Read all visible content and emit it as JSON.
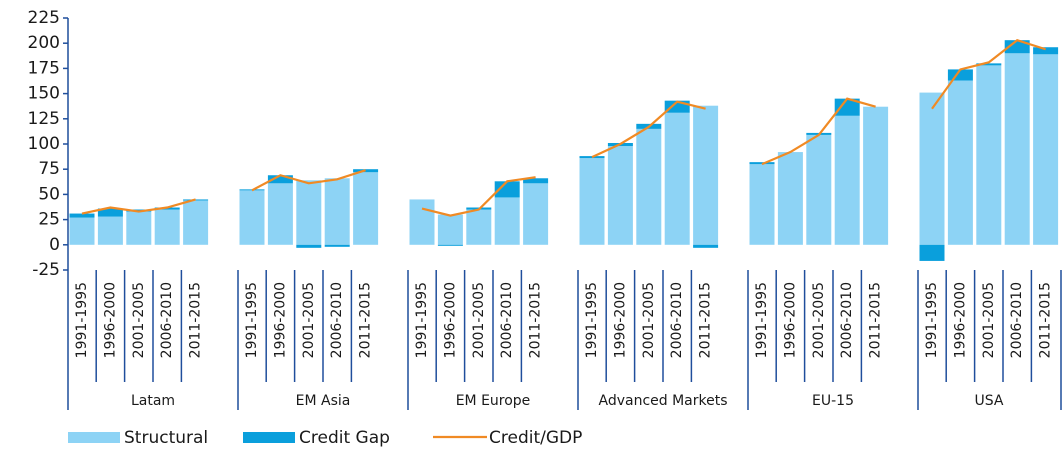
{
  "chart_data": {
    "type": "stacked-bar-line",
    "groups": [
      {
        "name": "Latam",
        "categories": [
          "1991-1995",
          "1996-2000",
          "2001-2005",
          "2006-2010",
          "2011-2015"
        ]
      },
      {
        "name": "EM Asia",
        "categories": [
          "1991-1995",
          "1996-2000",
          "2001-2005",
          "2006-2010",
          "2011-2015"
        ]
      },
      {
        "name": "EM Europe",
        "categories": [
          "1991-1995",
          "1996-2000",
          "2001-2005",
          "2006-2010",
          "2011-2015"
        ]
      },
      {
        "name": "Advanced Markets",
        "categories": [
          "1991-1995",
          "1996-2000",
          "2001-2005",
          "2006-2010",
          "2011-2015"
        ]
      },
      {
        "name": "EU-15",
        "categories": [
          "1991-1995",
          "1996-2000",
          "2001-2005",
          "2006-2010",
          "2011-2015"
        ]
      },
      {
        "name": "USA",
        "categories": [
          "1991-1995",
          "1996-2000",
          "2001-2005",
          "2006-2010",
          "2011-2015"
        ]
      }
    ],
    "series": [
      {
        "name": "Structural",
        "kind": "bar",
        "color": "#8dd3f5",
        "values": [
          27,
          28,
          33,
          35,
          44,
          54,
          61,
          64,
          66,
          72,
          45,
          30,
          35,
          47,
          61,
          86,
          98,
          115,
          131,
          138,
          80,
          92,
          109,
          128,
          137,
          151,
          163,
          178,
          190,
          189
        ]
      },
      {
        "name": "Credit Gap",
        "kind": "bar",
        "color": "#0a9fdc",
        "values": [
          4,
          8,
          2,
          2,
          1,
          1,
          8,
          -3,
          -2,
          3,
          0,
          -1,
          2,
          16,
          5,
          2,
          3,
          5,
          12,
          -3,
          2,
          0,
          2,
          17,
          0,
          -16,
          11,
          2,
          13,
          7
        ]
      },
      {
        "name": "Credit/GDP",
        "kind": "line",
        "color": "#f08a24",
        "values": [
          31,
          37,
          33,
          37,
          45,
          54,
          69,
          61,
          65,
          74,
          36,
          29,
          35,
          63,
          67,
          87,
          100,
          117,
          142,
          135,
          80,
          92,
          109,
          145,
          137,
          135,
          174,
          181,
          203,
          194
        ]
      }
    ],
    "ylim": [
      -25,
      225
    ],
    "yticks": [
      -25,
      0,
      25,
      50,
      75,
      100,
      125,
      150,
      175,
      200,
      225
    ]
  }
}
